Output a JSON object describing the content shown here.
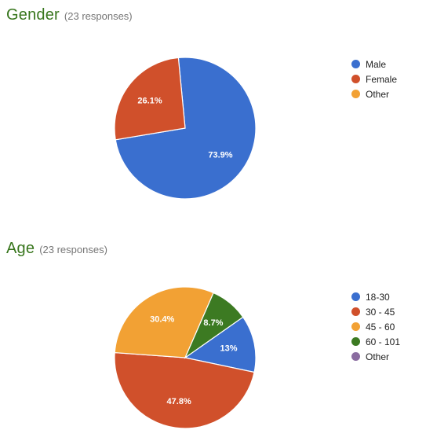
{
  "chart_data": [
    {
      "type": "pie",
      "title": "Gender",
      "subtitle": "(23 responses)",
      "legend_position": "right",
      "slices": [
        {
          "label": "Male",
          "value": 73.9,
          "display": "73.9%",
          "color": "#3a6fcf"
        },
        {
          "label": "Female",
          "value": 26.1,
          "display": "26.1%",
          "color": "#d0502b"
        },
        {
          "label": "Other",
          "value": 0,
          "display": "",
          "color": "#f2a134"
        }
      ]
    },
    {
      "type": "pie",
      "title": "Age",
      "subtitle": "(23 responses)",
      "legend_position": "right",
      "slices": [
        {
          "label": "18-30",
          "value": 13,
          "display": "13%",
          "color": "#3a6fcf"
        },
        {
          "label": "30 - 45",
          "value": 47.8,
          "display": "47.8%",
          "color": "#d0502b"
        },
        {
          "label": "45 - 60",
          "value": 30.4,
          "display": "30.4%",
          "color": "#f2a134"
        },
        {
          "label": "60 - 101",
          "value": 8.7,
          "display": "8.7%",
          "color": "#3c7a22"
        },
        {
          "label": "Other",
          "value": 0,
          "display": "",
          "color": "#8a6ca0"
        }
      ]
    }
  ]
}
